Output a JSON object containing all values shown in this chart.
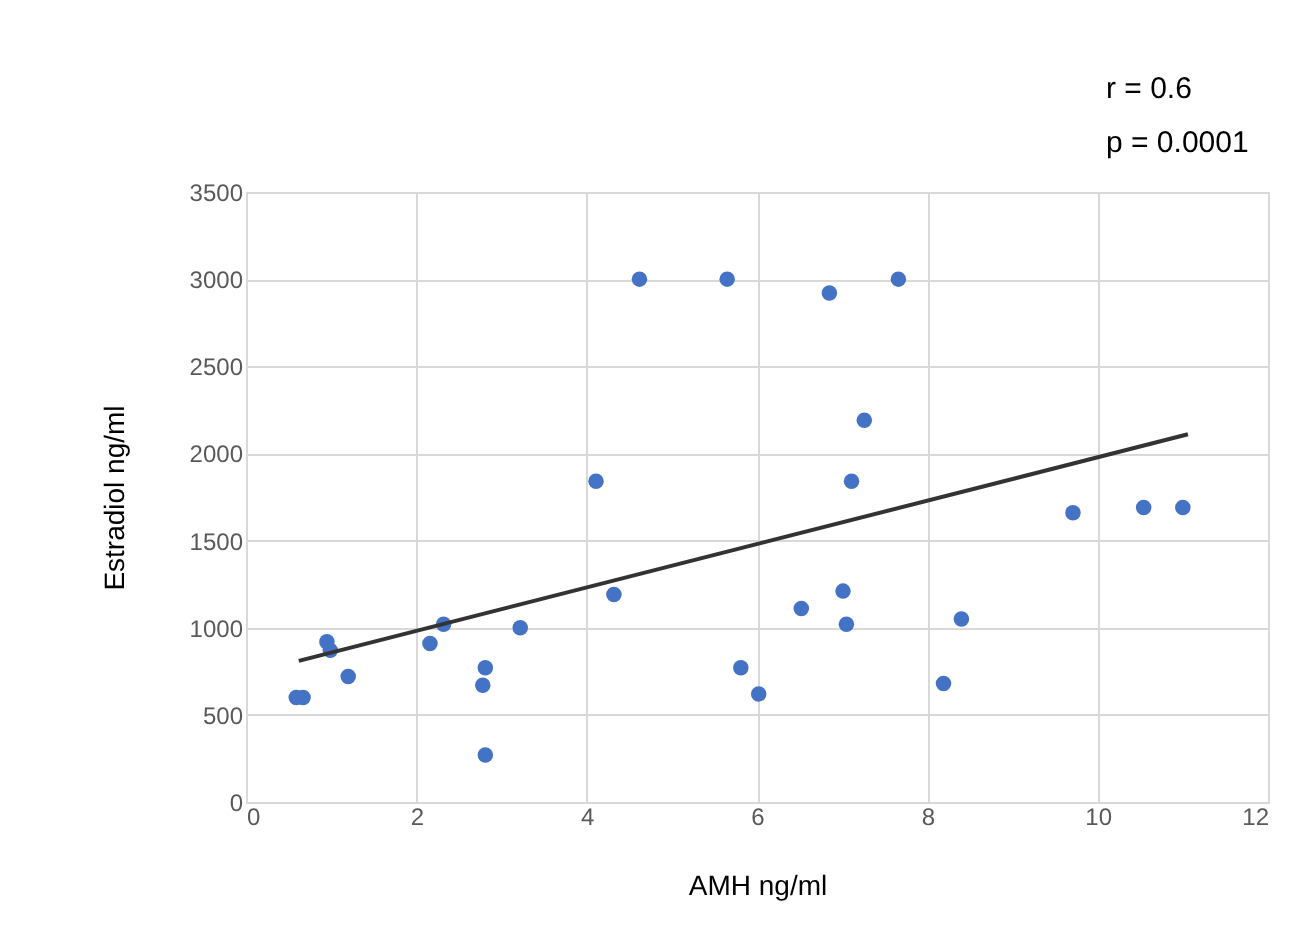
{
  "chart_data": {
    "type": "scatter",
    "xlabel": "AMH ng/ml",
    "ylabel": "Estradiol ng/ml",
    "annotations": [
      "r = 0.6",
      "p = 0.0001"
    ],
    "xlim": [
      0,
      12
    ],
    "xticks": [
      0,
      2,
      4,
      6,
      8,
      10,
      12
    ],
    "ylim": [
      0,
      3500
    ],
    "yticks": [
      0,
      500,
      1000,
      1500,
      2000,
      2500,
      3000,
      3500
    ],
    "grid": true,
    "series": [
      {
        "marker": "circle",
        "color": "#4472c4",
        "x": [
          0.59,
          0.67,
          0.95,
          0.99,
          1.2,
          2.16,
          2.32,
          2.81,
          2.78,
          2.81,
          3.22,
          4.11,
          4.32,
          4.62,
          5.65,
          5.81,
          6.02,
          6.85,
          7.66,
          7.26,
          7.11,
          6.52,
          7.01,
          7.05,
          8.4,
          8.19,
          9.71,
          10.54,
          11.0
        ],
        "values": [
          600,
          600,
          920,
          870,
          720,
          910,
          1020,
          770,
          670,
          270,
          1000,
          1840,
          1190,
          3000,
          3000,
          770,
          620,
          2920,
          3000,
          2190,
          1840,
          1110,
          1210,
          1020,
          1050,
          680,
          1660,
          1690,
          1690
        ]
      },
      {
        "type": "line",
        "color": "#333333",
        "x": [
          0.62,
          11.06
        ],
        "values": [
          810,
          2110
        ]
      }
    ]
  }
}
